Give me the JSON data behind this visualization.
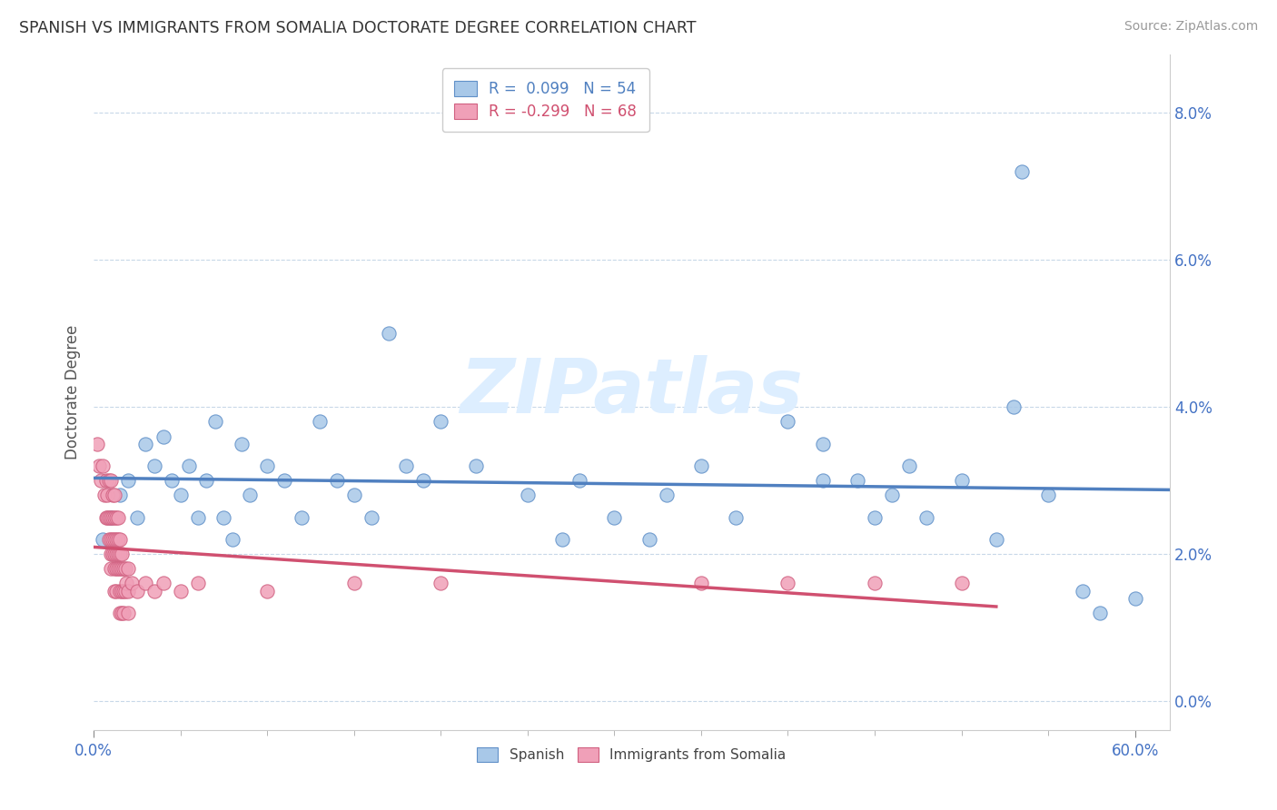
{
  "title": "SPANISH VS IMMIGRANTS FROM SOMALIA DOCTORATE DEGREE CORRELATION CHART",
  "source": "Source: ZipAtlas.com",
  "ylabel": "Doctorate Degree",
  "ytick_vals": [
    0.0,
    0.02,
    0.04,
    0.06,
    0.08
  ],
  "ytick_labels": [
    "0.0%",
    "2.0%",
    "4.0%",
    "6.0%",
    "8.0%"
  ],
  "xrange": [
    0.0,
    0.62
  ],
  "yrange": [
    -0.004,
    0.088
  ],
  "legend_blue_r": "R =  0.099",
  "legend_blue_n": "N = 54",
  "legend_pink_r": "R = -0.299",
  "legend_pink_n": "N = 68",
  "blue_fill": "#a8c8e8",
  "blue_edge": "#6090c8",
  "pink_fill": "#f0a0b8",
  "pink_edge": "#d06080",
  "blue_line": "#5080c0",
  "pink_line": "#d05070",
  "watermark_color": "#ddeeff",
  "blue_scatter": [
    [
      0.005,
      0.022
    ],
    [
      0.01,
      0.025
    ],
    [
      0.015,
      0.028
    ],
    [
      0.02,
      0.03
    ],
    [
      0.025,
      0.025
    ],
    [
      0.03,
      0.035
    ],
    [
      0.035,
      0.032
    ],
    [
      0.04,
      0.036
    ],
    [
      0.045,
      0.03
    ],
    [
      0.05,
      0.028
    ],
    [
      0.055,
      0.032
    ],
    [
      0.06,
      0.025
    ],
    [
      0.065,
      0.03
    ],
    [
      0.07,
      0.038
    ],
    [
      0.075,
      0.025
    ],
    [
      0.08,
      0.022
    ],
    [
      0.085,
      0.035
    ],
    [
      0.09,
      0.028
    ],
    [
      0.1,
      0.032
    ],
    [
      0.11,
      0.03
    ],
    [
      0.12,
      0.025
    ],
    [
      0.13,
      0.038
    ],
    [
      0.14,
      0.03
    ],
    [
      0.15,
      0.028
    ],
    [
      0.16,
      0.025
    ],
    [
      0.17,
      0.05
    ],
    [
      0.18,
      0.032
    ],
    [
      0.19,
      0.03
    ],
    [
      0.2,
      0.038
    ],
    [
      0.22,
      0.032
    ],
    [
      0.25,
      0.028
    ],
    [
      0.27,
      0.022
    ],
    [
      0.28,
      0.03
    ],
    [
      0.3,
      0.025
    ],
    [
      0.32,
      0.022
    ],
    [
      0.33,
      0.028
    ],
    [
      0.35,
      0.032
    ],
    [
      0.37,
      0.025
    ],
    [
      0.4,
      0.038
    ],
    [
      0.42,
      0.035
    ],
    [
      0.42,
      0.03
    ],
    [
      0.44,
      0.03
    ],
    [
      0.45,
      0.025
    ],
    [
      0.46,
      0.028
    ],
    [
      0.47,
      0.032
    ],
    [
      0.48,
      0.025
    ],
    [
      0.5,
      0.03
    ],
    [
      0.52,
      0.022
    ],
    [
      0.53,
      0.04
    ],
    [
      0.535,
      0.072
    ],
    [
      0.55,
      0.028
    ],
    [
      0.57,
      0.015
    ],
    [
      0.58,
      0.012
    ],
    [
      0.6,
      0.014
    ]
  ],
  "pink_scatter": [
    [
      0.002,
      0.035
    ],
    [
      0.003,
      0.032
    ],
    [
      0.004,
      0.03
    ],
    [
      0.005,
      0.032
    ],
    [
      0.006,
      0.028
    ],
    [
      0.007,
      0.03
    ],
    [
      0.007,
      0.025
    ],
    [
      0.008,
      0.028
    ],
    [
      0.008,
      0.025
    ],
    [
      0.009,
      0.03
    ],
    [
      0.009,
      0.025
    ],
    [
      0.009,
      0.022
    ],
    [
      0.01,
      0.03
    ],
    [
      0.01,
      0.025
    ],
    [
      0.01,
      0.022
    ],
    [
      0.01,
      0.02
    ],
    [
      0.01,
      0.018
    ],
    [
      0.011,
      0.028
    ],
    [
      0.011,
      0.025
    ],
    [
      0.011,
      0.022
    ],
    [
      0.011,
      0.02
    ],
    [
      0.012,
      0.028
    ],
    [
      0.012,
      0.025
    ],
    [
      0.012,
      0.022
    ],
    [
      0.012,
      0.02
    ],
    [
      0.012,
      0.018
    ],
    [
      0.012,
      0.015
    ],
    [
      0.013,
      0.025
    ],
    [
      0.013,
      0.022
    ],
    [
      0.013,
      0.02
    ],
    [
      0.013,
      0.018
    ],
    [
      0.013,
      0.015
    ],
    [
      0.014,
      0.025
    ],
    [
      0.014,
      0.022
    ],
    [
      0.014,
      0.02
    ],
    [
      0.014,
      0.018
    ],
    [
      0.015,
      0.022
    ],
    [
      0.015,
      0.02
    ],
    [
      0.015,
      0.018
    ],
    [
      0.015,
      0.015
    ],
    [
      0.015,
      0.012
    ],
    [
      0.016,
      0.02
    ],
    [
      0.016,
      0.018
    ],
    [
      0.016,
      0.015
    ],
    [
      0.016,
      0.012
    ],
    [
      0.017,
      0.018
    ],
    [
      0.017,
      0.015
    ],
    [
      0.017,
      0.012
    ],
    [
      0.018,
      0.018
    ],
    [
      0.018,
      0.015
    ],
    [
      0.019,
      0.016
    ],
    [
      0.02,
      0.018
    ],
    [
      0.02,
      0.015
    ],
    [
      0.02,
      0.012
    ],
    [
      0.022,
      0.016
    ],
    [
      0.025,
      0.015
    ],
    [
      0.03,
      0.016
    ],
    [
      0.035,
      0.015
    ],
    [
      0.04,
      0.016
    ],
    [
      0.05,
      0.015
    ],
    [
      0.06,
      0.016
    ],
    [
      0.1,
      0.015
    ],
    [
      0.15,
      0.016
    ],
    [
      0.2,
      0.016
    ],
    [
      0.35,
      0.016
    ],
    [
      0.4,
      0.016
    ],
    [
      0.45,
      0.016
    ],
    [
      0.5,
      0.016
    ]
  ]
}
